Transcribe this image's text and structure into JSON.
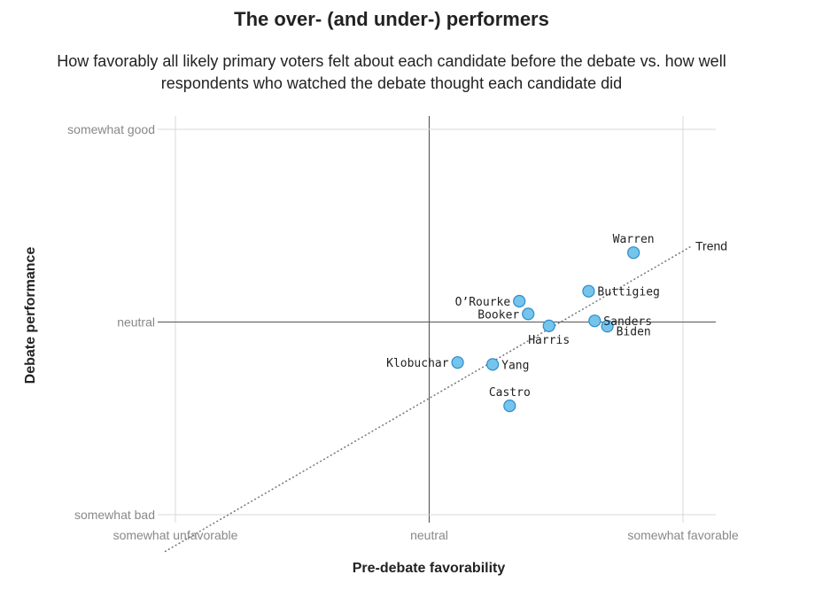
{
  "chart_data": {
    "type": "scatter",
    "title": "The over- (and under-) performers",
    "subtitle": "How favorably all likely primary voters felt about each candidate before the debate vs. how well respondents who watched the debate thought each candidate did",
    "xlabel": "Pre-debate favorability",
    "ylabel": "Debate performance",
    "xlim": [
      -1.0,
      1.12
    ],
    "ylim": [
      -1.0,
      1.07
    ],
    "x_ticks": [
      {
        "value": -1,
        "label": "somewhat unfavorable"
      },
      {
        "value": 0,
        "label": "neutral"
      },
      {
        "value": 1,
        "label": "somewhat favorable"
      }
    ],
    "y_ticks": [
      {
        "value": -1,
        "label": "somewhat bad"
      },
      {
        "value": 0,
        "label": "neutral"
      },
      {
        "value": 1,
        "label": "somewhat good"
      }
    ],
    "points": [
      {
        "name": "Warren",
        "x": 0.805,
        "y": 0.36,
        "label_pos": "above"
      },
      {
        "name": "Buttigieg",
        "x": 0.628,
        "y": 0.16,
        "label_pos": "right"
      },
      {
        "name": "O’Rourke",
        "x": 0.355,
        "y": 0.108,
        "label_pos": "left"
      },
      {
        "name": "Booker",
        "x": 0.39,
        "y": 0.042,
        "label_pos": "left"
      },
      {
        "name": "Harris",
        "x": 0.472,
        "y": -0.02,
        "label_pos": "below"
      },
      {
        "name": "Sanders",
        "x": 0.652,
        "y": 0.006,
        "label_pos": "right"
      },
      {
        "name": "Biden",
        "x": 0.702,
        "y": -0.022,
        "label_pos": "right-below"
      },
      {
        "name": "Klobuchar",
        "x": 0.112,
        "y": -0.21,
        "label_pos": "left"
      },
      {
        "name": "Yang",
        "x": 0.25,
        "y": -0.22,
        "label_pos": "right"
      },
      {
        "name": "Castro",
        "x": 0.317,
        "y": -0.435,
        "label_pos": "above"
      }
    ],
    "trend": {
      "label": "Trend",
      "from": [
        -1.0,
        -1.155
      ],
      "to": [
        1.035,
        0.395
      ]
    },
    "colors": {
      "point_fill": "#75c4ec",
      "point_stroke": "#2e8bc9",
      "grid": "#d8d8d8",
      "zero": "#555555"
    }
  }
}
